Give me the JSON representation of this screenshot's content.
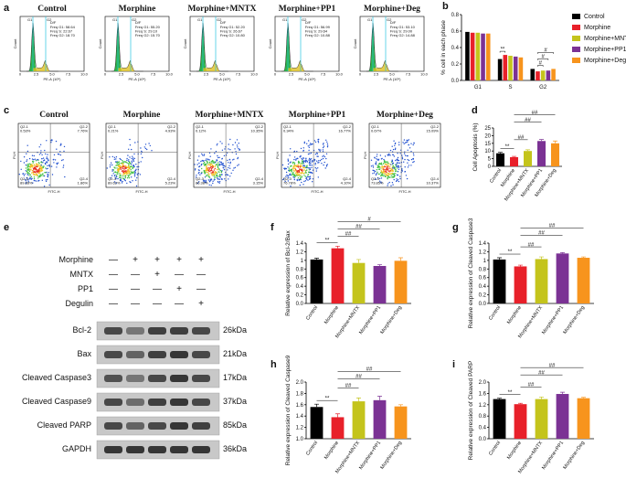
{
  "cell_cycle": {
    "label": "a",
    "axes": {
      "ylabel": "Count",
      "xlabel": "PE-A (10⁵)",
      "xticks": [
        "0",
        "2.5",
        "5.0",
        "7.5",
        "10.0"
      ]
    },
    "gate_labels": [
      "G1",
      "G2"
    ],
    "model": "D/F",
    "panels": [
      {
        "title": "Control",
        "stats": [
          "Freq G1: 58.64",
          "Freq S: 22.67",
          "Freq G2: 18.70"
        ]
      },
      {
        "title": "Morphine",
        "stats": [
          "Freq G1: 55.20",
          "Freq S: 29.10",
          "Freq G2: 15.70"
        ]
      },
      {
        "title": "Morphine+MNTX",
        "stats": [
          "Freq G1: 52.20",
          "Freq S: 26.67",
          "Freq G2: 10.80"
        ]
      },
      {
        "title": "Morphine+PP1",
        "stats": [
          "Freq G1: 56.99",
          "Freq S: 29.64",
          "Freq G2: 10.88"
        ]
      },
      {
        "title": "Morphine+Deg",
        "stats": [
          "Freq G1: 53.10",
          "Freq S: 29.00",
          "Freq G2: 14.88"
        ]
      }
    ]
  },
  "apoptosis": {
    "label": "c",
    "xlabel": "FITC-H",
    "ylabel": "PI-H",
    "quadrants": [
      "Q2-1",
      "Q2-2",
      "Q2-3",
      "Q2-4"
    ],
    "panels": [
      {
        "title": "Control",
        "percents": [
          "0.53%",
          "7.76%",
          "89.88%",
          "1.86%"
        ]
      },
      {
        "title": "Morphine",
        "percents": [
          "0.21%",
          "4.93%",
          "89.62%",
          "5.23%"
        ]
      },
      {
        "title": "Morphine+MNTX",
        "percents": [
          "0.12%",
          "10.35%",
          "86.38%",
          "3.15%"
        ]
      },
      {
        "title": "Morphine+PP1",
        "percents": [
          "0.34%",
          "16.77%",
          "76.78%",
          "4.10%"
        ]
      },
      {
        "title": "Morphine+Deg",
        "percents": [
          "0.67%",
          "15.09%",
          "73.85%",
          "10.37%"
        ]
      }
    ]
  },
  "western_blot": {
    "label": "e",
    "treatments": [
      {
        "name": "Morphine",
        "signs": [
          "—",
          "+",
          "+",
          "+",
          "+"
        ]
      },
      {
        "name": "MNTX",
        "signs": [
          "—",
          "—",
          "+",
          "—",
          "—"
        ]
      },
      {
        "name": "PP1",
        "signs": [
          "—",
          "—",
          "—",
          "+",
          "—"
        ]
      },
      {
        "name": "Degulin",
        "signs": [
          "—",
          "—",
          "—",
          "—",
          "+"
        ]
      }
    ],
    "bands": [
      {
        "name": "Bcl-2",
        "size": "26kDa"
      },
      {
        "name": "Bax",
        "size": "21kDa"
      },
      {
        "name": "Cleaved Caspase3",
        "size": "17kDa"
      },
      {
        "name": "Cleaved Caspase9",
        "size": "37kDa"
      },
      {
        "name": "Cleaved PARP",
        "size": "85kDa"
      },
      {
        "name": "GAPDH",
        "size": "36kDa"
      }
    ]
  },
  "chart_data": [
    {
      "label": "b",
      "type": "bar",
      "ylabel": "% cell in each phase",
      "categories": [
        "G1",
        "S",
        "G2"
      ],
      "series": [
        {
          "name": "Control",
          "color": "#000000",
          "values": [
            0.59,
            0.26,
            0.14
          ]
        },
        {
          "name": "Morphine",
          "color": "#e8202a",
          "values": [
            0.58,
            0.31,
            0.11
          ]
        },
        {
          "name": "Morphine+MNTX",
          "color": "#c4c41c",
          "values": [
            0.58,
            0.3,
            0.12
          ]
        },
        {
          "name": "Morphine+PP1",
          "color": "#7b3294",
          "values": [
            0.57,
            0.29,
            0.12
          ]
        },
        {
          "name": "Morphine+Deg",
          "color": "#f7941d",
          "values": [
            0.57,
            0.28,
            0.14
          ]
        }
      ],
      "ylim": [
        0,
        0.8
      ],
      "yticks": [
        {
          "value": 0,
          "label": "0.0"
        },
        0.2,
        0.4,
        0.6,
        0.8
      ],
      "annotations": [
        "**",
        "#",
        "#",
        "#"
      ],
      "legend": "right"
    },
    {
      "label": "d",
      "type": "bar",
      "ylabel": "Cell Apoptosis (%)",
      "categories": [
        "Control",
        "Morphine",
        "Morphine+MNTX",
        "Morphine+PP1",
        "Morphine+Deg"
      ],
      "values": [
        8.5,
        6,
        10,
        16.5,
        15
      ],
      "errors": [
        0.6,
        0.5,
        0.8,
        1.0,
        1.5
      ],
      "colors": [
        "#000000",
        "#e8202a",
        "#c4c41c",
        "#7b3294",
        "#f7941d"
      ],
      "ylim": [
        0,
        25
      ],
      "yticks": [
        0,
        5,
        10,
        15,
        20,
        25
      ],
      "annotations": [
        "**",
        "##",
        "##",
        "##"
      ]
    },
    {
      "label": "f",
      "type": "bar",
      "ylabel": "Relative expression of Bcl-2/Bax",
      "categories": [
        "Control",
        "Morphine",
        "Morphine+MNTX",
        "Morphine+PP1",
        "Morphine+Deg"
      ],
      "values": [
        1.02,
        1.28,
        0.94,
        0.87,
        0.99
      ],
      "errors": [
        0.03,
        0.05,
        0.08,
        0.03,
        0.07
      ],
      "colors": [
        "#000000",
        "#e8202a",
        "#c4c41c",
        "#7b3294",
        "#f7941d"
      ],
      "ylim": [
        0,
        1.4
      ],
      "yticks": [
        {
          "value": 0,
          "label": "0.0"
        },
        0.2,
        0.4,
        0.6,
        0.8,
        1.0,
        1.2,
        1.4
      ],
      "annotations": [
        "**",
        "##",
        "##",
        "#"
      ]
    },
    {
      "label": "g",
      "type": "bar",
      "ylabel": "Relative expression of Cleaved Caspase3",
      "categories": [
        "Control",
        "Morphine",
        "Morphine+MNTX",
        "Morphine+PP1",
        "Morphine+Deg"
      ],
      "values": [
        1.02,
        0.86,
        1.03,
        1.16,
        1.06
      ],
      "errors": [
        0.04,
        0.03,
        0.05,
        0.02,
        0.02
      ],
      "colors": [
        "#000000",
        "#e8202a",
        "#c4c41c",
        "#7b3294",
        "#f7941d"
      ],
      "ylim": [
        0,
        1.4
      ],
      "yticks": [
        {
          "value": 0,
          "label": "0.0"
        },
        0.2,
        0.4,
        0.6,
        0.8,
        1.0,
        1.2,
        1.4
      ],
      "annotations": [
        "**",
        "##",
        "##",
        "##"
      ]
    },
    {
      "label": "h",
      "type": "bar",
      "ylabel": "Relative expression of Cleaved Caspase9",
      "categories": [
        "Control",
        "Morphine",
        "Morphine+MNTX",
        "Morphine+PP1",
        "Morphine+Deg"
      ],
      "values": [
        1.56,
        1.38,
        1.66,
        1.68,
        1.57
      ],
      "errors": [
        0.05,
        0.06,
        0.06,
        0.07,
        0.03
      ],
      "colors": [
        "#000000",
        "#e8202a",
        "#c4c41c",
        "#7b3294",
        "#f7941d"
      ],
      "ylim": [
        1.0,
        2.0
      ],
      "yticks": [
        {
          "value": 1.0,
          "label": "1.0"
        },
        1.2,
        1.4,
        1.6,
        1.8,
        {
          "value": 2.0,
          "label": "2.0"
        }
      ],
      "annotations": [
        "**",
        "##",
        "##",
        "##"
      ]
    },
    {
      "label": "i",
      "type": "bar",
      "ylabel": "Relative expression of Cleaved PARP",
      "categories": [
        "Control",
        "Morphine",
        "Morphine+MNTX",
        "Morphine+PP1",
        "Morphine+Deg"
      ],
      "values": [
        1.4,
        1.22,
        1.4,
        1.58,
        1.43
      ],
      "errors": [
        0.03,
        0.03,
        0.07,
        0.06,
        0.03
      ],
      "colors": [
        "#000000",
        "#e8202a",
        "#c4c41c",
        "#7b3294",
        "#f7941d"
      ],
      "ylim": [
        0,
        2.0
      ],
      "yticks": [
        {
          "value": 0,
          "label": "0.0"
        },
        0.4,
        0.8,
        1.2,
        1.6,
        {
          "value": 2.0,
          "label": "2.0"
        }
      ],
      "annotations": [
        "**",
        "##",
        "##",
        "##"
      ]
    }
  ]
}
